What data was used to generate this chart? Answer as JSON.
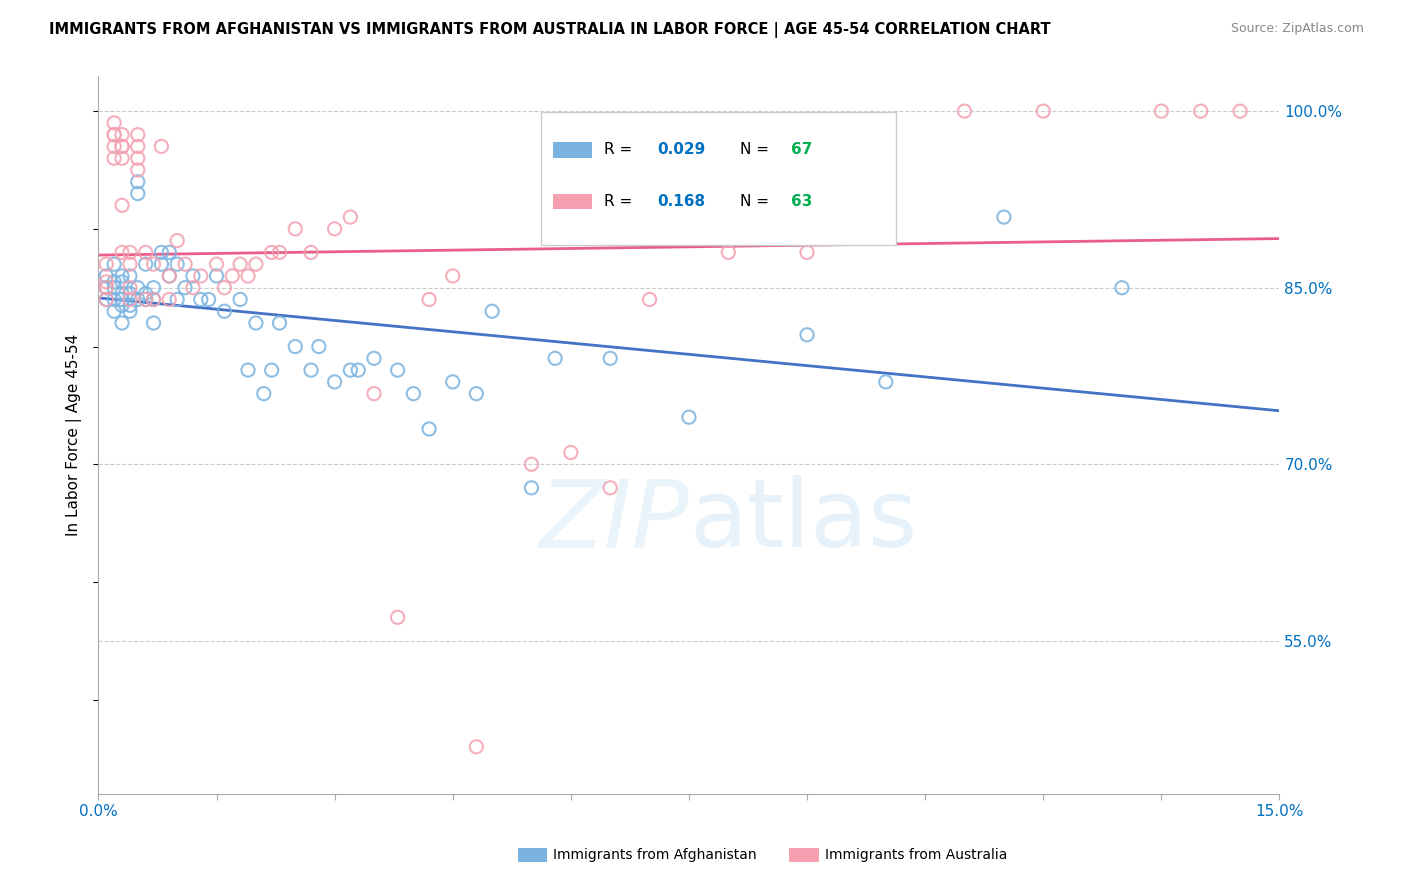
{
  "title": "IMMIGRANTS FROM AFGHANISTAN VS IMMIGRANTS FROM AUSTRALIA IN LABOR FORCE | AGE 45-54 CORRELATION CHART",
  "source": "Source: ZipAtlas.com",
  "ylabel": "In Labor Force | Age 45-54",
  "xlim": [
    0.0,
    0.15
  ],
  "ylim": [
    0.42,
    1.03
  ],
  "xticks": [
    0.0,
    0.015,
    0.03,
    0.045,
    0.06,
    0.075,
    0.09,
    0.105,
    0.12,
    0.135,
    0.15
  ],
  "xticklabels": [
    "0.0%",
    "",
    "",
    "",
    "",
    "",
    "",
    "",
    "",
    "",
    "15.0%"
  ],
  "ytick_positions": [
    0.55,
    0.7,
    0.85,
    1.0
  ],
  "ytick_labels": [
    "55.0%",
    "70.0%",
    "85.0%",
    "100.0%"
  ],
  "afghanistan_color": "#7ab3e0",
  "australia_color": "#f4a0b0",
  "afghanistan_R": 0.029,
  "afghanistan_N": 67,
  "australia_R": 0.168,
  "australia_N": 63,
  "legend_R_color": "#0070c0",
  "legend_N_color": "#00b050",
  "afghanistan_line_color": "#4472c4",
  "australia_line_color": "#e85d8a",
  "afghanistan_x": [
    0.001,
    0.001,
    0.001,
    0.002,
    0.002,
    0.002,
    0.002,
    0.002,
    0.003,
    0.003,
    0.003,
    0.003,
    0.003,
    0.003,
    0.004,
    0.004,
    0.004,
    0.004,
    0.005,
    0.005,
    0.005,
    0.005,
    0.006,
    0.006,
    0.006,
    0.007,
    0.007,
    0.007,
    0.008,
    0.008,
    0.009,
    0.009,
    0.01,
    0.01,
    0.011,
    0.012,
    0.013,
    0.014,
    0.015,
    0.016,
    0.018,
    0.019,
    0.02,
    0.021,
    0.022,
    0.023,
    0.025,
    0.027,
    0.028,
    0.03,
    0.032,
    0.033,
    0.035,
    0.038,
    0.04,
    0.042,
    0.045,
    0.048,
    0.05,
    0.055,
    0.058,
    0.065,
    0.075,
    0.09,
    0.1,
    0.115,
    0.13
  ],
  "afghanistan_y": [
    0.84,
    0.85,
    0.86,
    0.83,
    0.84,
    0.85,
    0.855,
    0.87,
    0.82,
    0.835,
    0.84,
    0.845,
    0.855,
    0.86,
    0.83,
    0.835,
    0.845,
    0.86,
    0.93,
    0.94,
    0.84,
    0.85,
    0.84,
    0.845,
    0.87,
    0.82,
    0.84,
    0.85,
    0.87,
    0.88,
    0.86,
    0.88,
    0.84,
    0.87,
    0.85,
    0.86,
    0.84,
    0.84,
    0.86,
    0.83,
    0.84,
    0.78,
    0.82,
    0.76,
    0.78,
    0.82,
    0.8,
    0.78,
    0.8,
    0.77,
    0.78,
    0.78,
    0.79,
    0.78,
    0.76,
    0.73,
    0.77,
    0.76,
    0.83,
    0.68,
    0.79,
    0.79,
    0.74,
    0.81,
    0.77,
    0.91,
    0.85
  ],
  "australia_x": [
    0.001,
    0.001,
    0.001,
    0.001,
    0.002,
    0.002,
    0.002,
    0.002,
    0.002,
    0.003,
    0.003,
    0.003,
    0.003,
    0.003,
    0.003,
    0.004,
    0.004,
    0.004,
    0.004,
    0.005,
    0.005,
    0.005,
    0.005,
    0.006,
    0.006,
    0.007,
    0.007,
    0.008,
    0.009,
    0.009,
    0.01,
    0.011,
    0.012,
    0.013,
    0.015,
    0.016,
    0.017,
    0.018,
    0.019,
    0.02,
    0.022,
    0.023,
    0.025,
    0.027,
    0.03,
    0.032,
    0.035,
    0.038,
    0.042,
    0.045,
    0.048,
    0.055,
    0.06,
    0.065,
    0.07,
    0.08,
    0.09,
    0.1,
    0.11,
    0.12,
    0.135,
    0.14,
    0.145
  ],
  "australia_y": [
    0.84,
    0.85,
    0.855,
    0.87,
    0.96,
    0.97,
    0.98,
    0.98,
    0.99,
    0.88,
    0.92,
    0.96,
    0.97,
    0.97,
    0.98,
    0.84,
    0.85,
    0.87,
    0.88,
    0.95,
    0.96,
    0.97,
    0.98,
    0.84,
    0.88,
    0.84,
    0.87,
    0.97,
    0.84,
    0.86,
    0.89,
    0.87,
    0.85,
    0.86,
    0.87,
    0.85,
    0.86,
    0.87,
    0.86,
    0.87,
    0.88,
    0.88,
    0.9,
    0.88,
    0.9,
    0.91,
    0.76,
    0.57,
    0.84,
    0.86,
    0.46,
    0.7,
    0.71,
    0.68,
    0.84,
    0.88,
    0.88,
    0.91,
    1.0,
    1.0,
    1.0,
    1.0,
    1.0
  ]
}
